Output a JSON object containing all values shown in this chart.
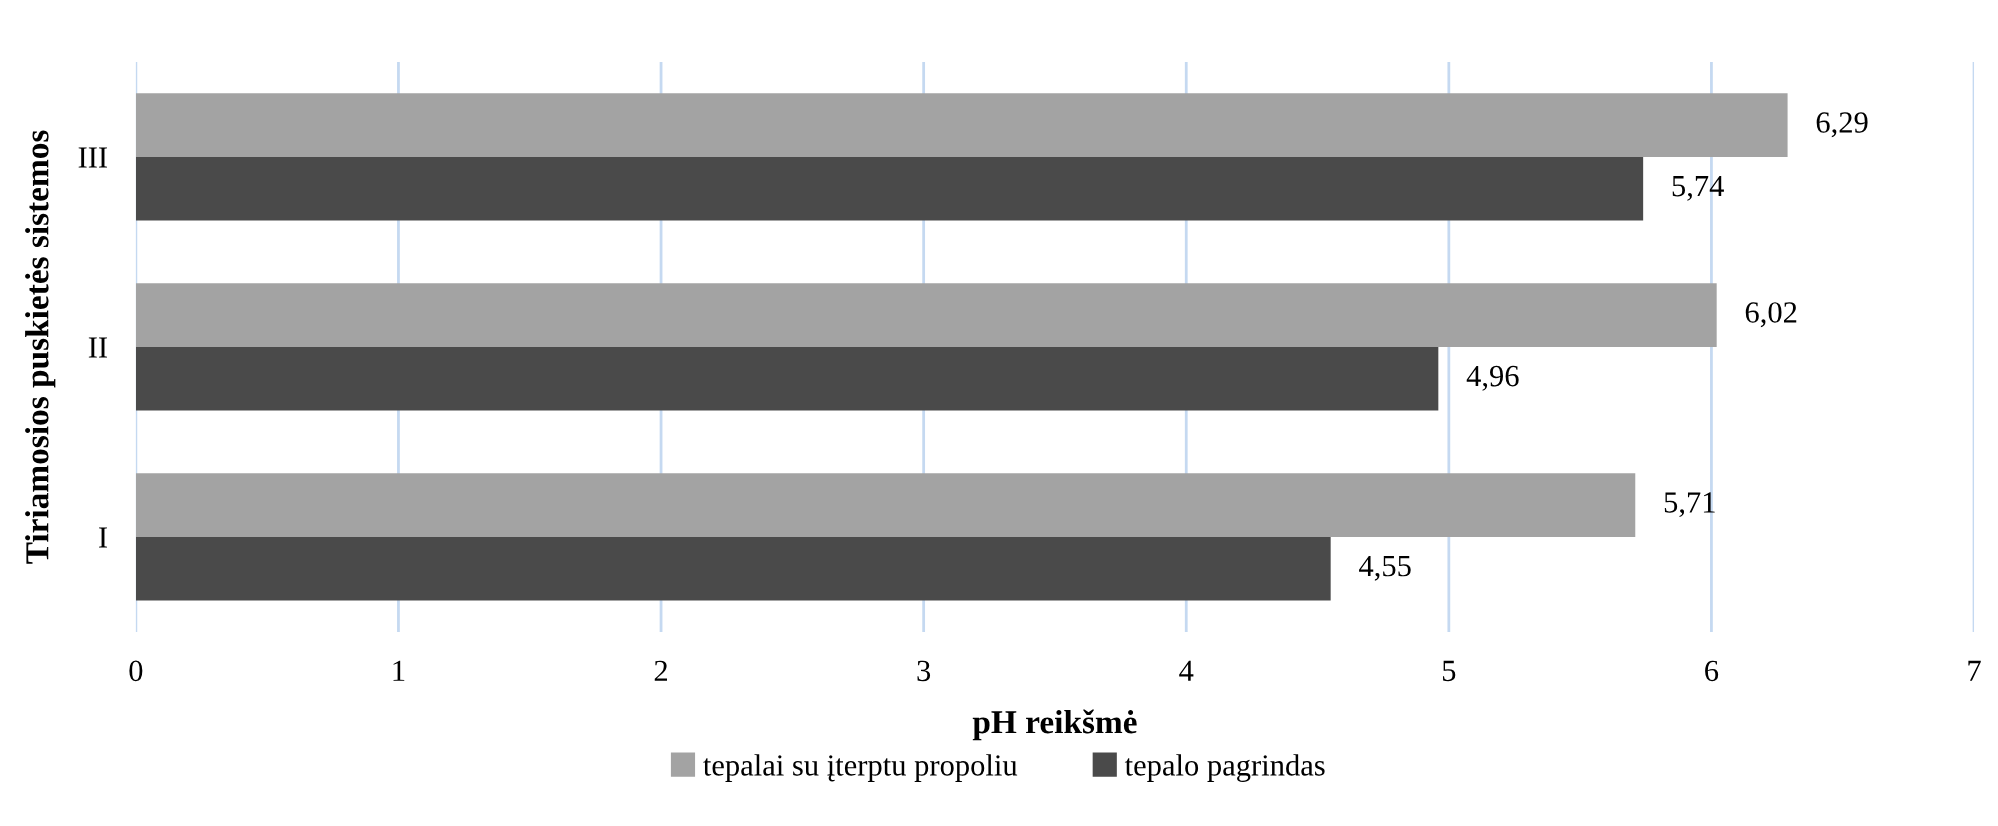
{
  "chart_data": {
    "type": "bar",
    "orientation": "horizontal",
    "xlabel": "pH reikšmė",
    "ylabel": "Tiriamosios puskietės sistemos",
    "categories": [
      "III",
      "II",
      "I"
    ],
    "series": [
      {
        "name": "tepalai su įterptu propoliu",
        "color": "#a3a3a3",
        "values": [
          6.29,
          6.02,
          5.71
        ],
        "value_labels": [
          "6,29",
          "6,02",
          "5,71"
        ]
      },
      {
        "name": "tepalo pagrindas",
        "color": "#4a4a4a",
        "values": [
          5.74,
          4.96,
          4.55
        ],
        "value_labels": [
          "5,74",
          "4,96",
          "4,55"
        ]
      }
    ],
    "xlim": [
      0,
      7
    ],
    "xticks": [
      0,
      1,
      2,
      3,
      4,
      5,
      6,
      7
    ],
    "grid": "x",
    "legend": "bottom"
  }
}
